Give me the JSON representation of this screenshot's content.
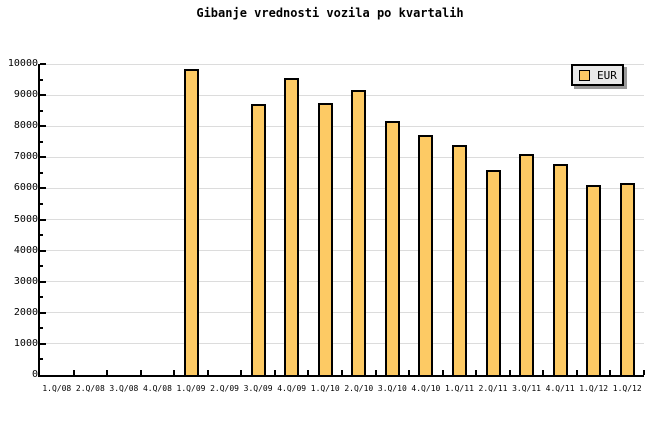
{
  "chart_data": {
    "type": "bar",
    "title": "Gibanje vrednosti vozila po kvartalih",
    "categories": [
      "1.Q/08",
      "2.Q/08",
      "3.Q/08",
      "4.Q/08",
      "1.Q/09",
      "2.Q/09",
      "3.Q/09",
      "4.Q/09",
      "1.Q/10",
      "2.Q/10",
      "3.Q/10",
      "4.Q/10",
      "1.Q/11",
      "2.Q/11",
      "3.Q/11",
      "4.Q/11",
      "1.Q/12",
      "1.Q/12"
    ],
    "series": [
      {
        "name": "EUR",
        "values": [
          null,
          null,
          null,
          null,
          9850,
          null,
          8730,
          9540,
          8740,
          9160,
          8160,
          7730,
          7380,
          6600,
          7100,
          6790,
          6120,
          6190
        ]
      }
    ],
    "xlabel": "",
    "ylabel": "",
    "ylim": [
      0,
      10000
    ],
    "y_major_step": 1000,
    "y_minor_step": 500,
    "y_tick_labels": [
      "0",
      "1000",
      "2000",
      "3000",
      "4000",
      "5000",
      "6000",
      "7000",
      "8000",
      "9000",
      "10000"
    ],
    "grid": "horizontal-major",
    "legend_position": "top-right",
    "colors": {
      "bar_fill": "#FDCA64",
      "bar_border": "#000000",
      "gridline": "#DCDCDC",
      "axis": "#000000",
      "legend_bg": "#E9E9E9",
      "legend_shadow": "#999999",
      "background": "#FFFFFF",
      "text": "#000000"
    }
  }
}
